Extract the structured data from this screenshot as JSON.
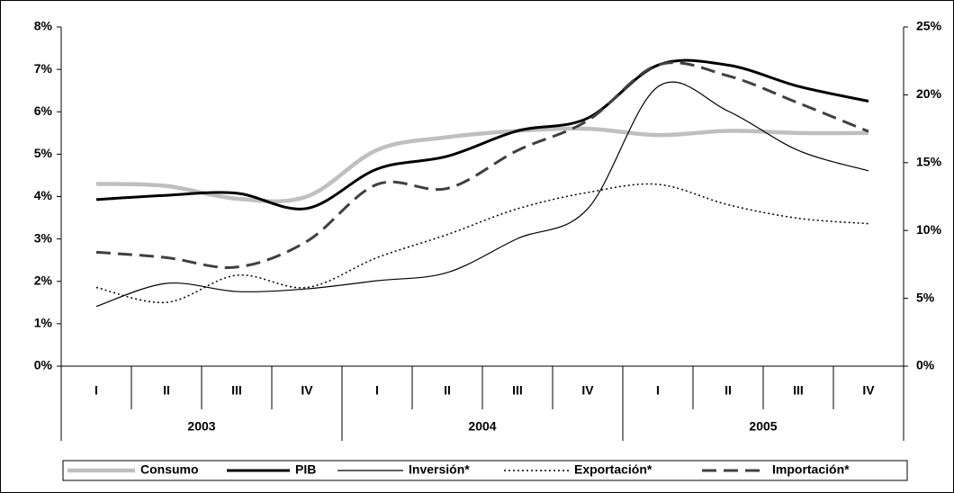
{
  "chart_data": {
    "type": "line",
    "categories": [
      "I",
      "II",
      "III",
      "IV",
      "I",
      "II",
      "III",
      "IV",
      "I",
      "II",
      "III",
      "IV"
    ],
    "groups": [
      "2003",
      "2004",
      "2005"
    ],
    "ylim": [
      0,
      8
    ],
    "yticks": [
      {
        "value": 0,
        "label": "0%"
      },
      {
        "value": 1,
        "label": "1%"
      },
      {
        "value": 2,
        "label": "2%"
      },
      {
        "value": 3,
        "label": "3%"
      },
      {
        "value": 4,
        "label": "4%"
      },
      {
        "value": 5,
        "label": "5%"
      },
      {
        "value": 6,
        "label": "6%"
      },
      {
        "value": 7,
        "label": "7%"
      },
      {
        "value": 8,
        "label": "8%"
      }
    ],
    "y2lim": [
      0,
      25
    ],
    "y2ticks": [
      {
        "value": 0,
        "label": "0%"
      },
      {
        "value": 5,
        "label": "5%"
      },
      {
        "value": 10,
        "label": "10%"
      },
      {
        "value": 15,
        "label": "15%"
      },
      {
        "value": 20,
        "label": "20%"
      },
      {
        "value": 25,
        "label": "25%"
      }
    ],
    "legend": "bottom",
    "series": [
      {
        "name": "Consumo",
        "color": "#bfbfbf",
        "values": [
          4.3,
          4.25,
          3.95,
          4.0,
          5.1,
          5.4,
          5.55,
          5.6,
          5.45,
          5.55,
          5.5,
          5.5
        ]
      },
      {
        "name": "PIB",
        "color": "#000000",
        "values": [
          3.93,
          4.03,
          4.08,
          3.72,
          4.65,
          4.95,
          5.55,
          5.85,
          7.1,
          7.1,
          6.6,
          6.25
        ]
      },
      {
        "name": "Inversión*",
        "color": "#000000",
        "axis": "y2",
        "values": [
          4.4,
          6.1,
          5.5,
          5.7,
          6.3,
          6.9,
          9.4,
          11.6,
          20.6,
          18.8,
          15.9,
          14.4
        ]
      },
      {
        "name": "Exportación*",
        "color": "#000000",
        "axis": "y2",
        "values": [
          5.8,
          4.7,
          6.7,
          5.8,
          8.0,
          9.7,
          11.6,
          12.8,
          13.4,
          11.9,
          10.9,
          10.5
        ]
      },
      {
        "name": "Importación*",
        "color": "#404040",
        "axis": "y2",
        "values": [
          8.4,
          8.0,
          7.3,
          9.2,
          13.4,
          13.1,
          15.9,
          18.1,
          22.2,
          21.4,
          19.4,
          17.3
        ]
      }
    ]
  }
}
